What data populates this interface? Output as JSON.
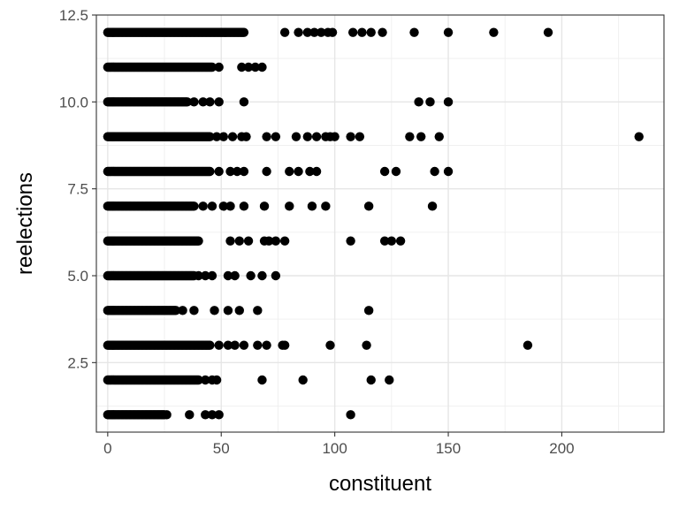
{
  "chart_data": {
    "type": "scatter",
    "xlabel": "constituent",
    "ylabel": "reelections",
    "xlim": [
      -5,
      245
    ],
    "ylim": [
      0.5,
      12.5
    ],
    "x_ticks": [
      0,
      50,
      100,
      150,
      200
    ],
    "x_tick_labels": [
      "0",
      "50",
      "100",
      "150",
      "200"
    ],
    "y_ticks": [
      2.5,
      5.0,
      7.5,
      10.0,
      12.5
    ],
    "y_tick_labels": [
      "2.5",
      "5.0",
      "7.5",
      "10.0",
      "12.5"
    ],
    "grid": true,
    "point_color": "#000000",
    "rows": [
      {
        "y": 12,
        "dense_max": 60,
        "x": [
          78,
          84,
          88,
          91,
          94,
          97,
          99,
          108,
          112,
          116,
          121,
          135,
          150,
          170,
          194
        ]
      },
      {
        "y": 11,
        "dense_max": 46,
        "x": [
          49,
          59,
          62,
          65,
          68
        ]
      },
      {
        "y": 10,
        "dense_max": 35,
        "x": [
          38,
          42,
          45,
          49,
          60,
          137,
          142,
          150
        ]
      },
      {
        "y": 9,
        "dense_max": 45,
        "x": [
          48,
          51,
          55,
          59,
          61,
          70,
          74,
          83,
          88,
          92,
          96,
          98,
          100,
          107,
          111,
          133,
          138,
          146,
          234
        ]
      },
      {
        "y": 8,
        "dense_max": 45,
        "x": [
          49,
          54,
          57,
          60,
          70,
          80,
          84,
          89,
          92,
          122,
          127,
          144,
          150
        ]
      },
      {
        "y": 7,
        "dense_max": 38,
        "x": [
          42,
          46,
          51,
          54,
          60,
          69,
          80,
          90,
          96,
          115,
          143
        ]
      },
      {
        "y": 6,
        "dense_max": 40,
        "x": [
          54,
          58,
          62,
          69,
          71,
          74,
          78,
          107,
          122,
          125,
          129
        ]
      },
      {
        "y": 5,
        "dense_max": 38,
        "x": [
          40,
          43,
          46,
          53,
          56,
          63,
          68,
          74
        ]
      },
      {
        "y": 4,
        "dense_max": 30,
        "x": [
          33,
          38,
          47,
          53,
          58,
          66,
          115
        ]
      },
      {
        "y": 3,
        "dense_max": 45,
        "x": [
          49,
          53,
          56,
          60,
          66,
          70,
          77,
          78,
          98,
          114,
          185
        ]
      },
      {
        "y": 2,
        "dense_max": 40,
        "x": [
          43,
          46,
          48,
          68,
          86,
          116,
          124
        ]
      },
      {
        "y": 1,
        "dense_max": 25,
        "x": [
          26,
          36,
          43,
          46,
          49,
          107
        ]
      }
    ]
  }
}
